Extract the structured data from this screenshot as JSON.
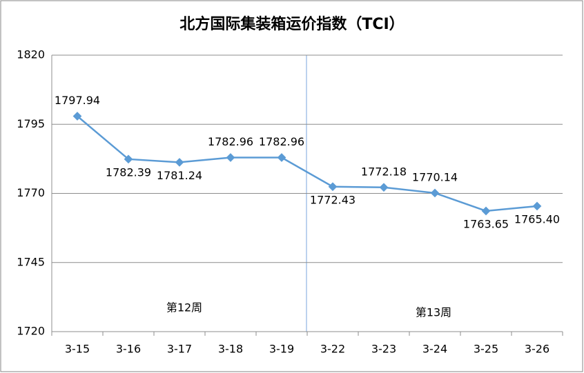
{
  "chart_data": {
    "type": "line",
    "title": "北方国际集装箱运价指数（TCI）",
    "categories": [
      "3-15",
      "3-16",
      "3-17",
      "3-18",
      "3-19",
      "3-22",
      "3-23",
      "3-24",
      "3-25",
      "3-26"
    ],
    "series": [
      {
        "name": "TCI",
        "color": "#5b9bd5",
        "values": [
          1797.94,
          1782.39,
          1781.24,
          1782.96,
          1782.96,
          1772.43,
          1772.18,
          1770.14,
          1763.65,
          1765.4
        ],
        "value_labels": [
          "1797.94",
          "1782.39",
          "1781.24",
          "1782.96",
          "1782.96",
          "1772.43",
          "1772.18",
          "1770.14",
          "1763.65",
          "1765.40"
        ]
      }
    ],
    "ylim": [
      1720,
      1820
    ],
    "yticks": [
      1720,
      1745,
      1770,
      1795,
      1820
    ],
    "grid": true,
    "annotations": [
      "第12周",
      "第13周"
    ]
  }
}
